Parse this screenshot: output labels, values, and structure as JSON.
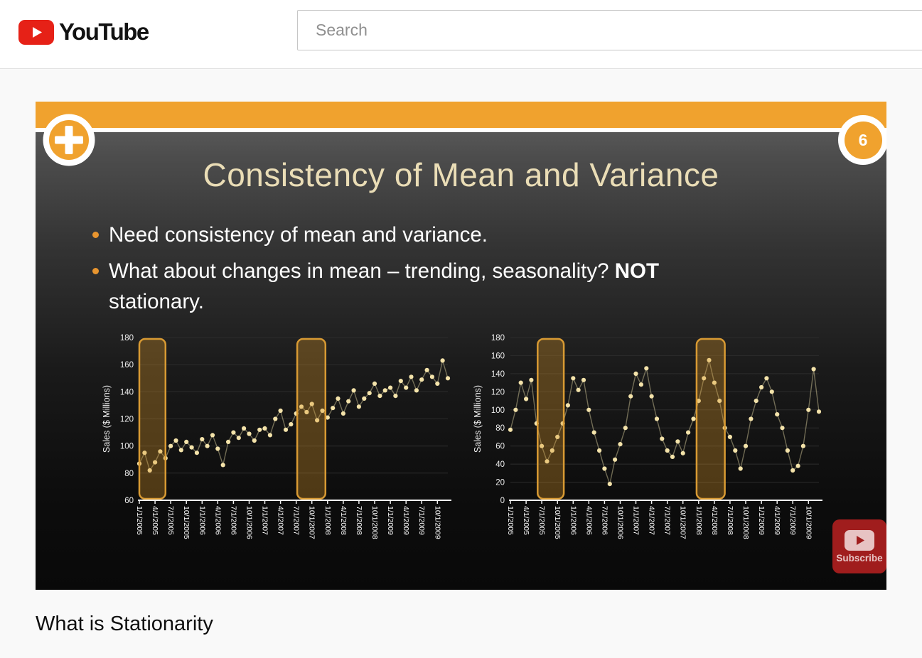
{
  "header": {
    "logo_text": "YouTube",
    "search_placeholder": "Search"
  },
  "slide": {
    "slide_number": "6",
    "title": "Consistency of Mean and Variance",
    "bullets": [
      {
        "text": "Need consistency of mean and variance."
      },
      {
        "pre": "What about changes in mean – trending, seasonality? ",
        "bold": "NOT",
        "post": "stationary."
      }
    ]
  },
  "video": {
    "title": "What is Stationarity"
  },
  "subscribe": {
    "label": "Subscribe"
  },
  "colors": {
    "accent_orange": "#F0A22E",
    "slide_title_cream": "#EADDB6",
    "data_point_cream": "#F4E3AA",
    "highlight_stroke": "#D89A33",
    "subscribe_red": "#A01D1D",
    "youtube_red": "#E62117"
  },
  "chart_data": [
    {
      "type": "scatter",
      "connected_by_line": true,
      "title": "",
      "xlabel": "",
      "ylabel": "Sales ($ Millions)",
      "ylim": [
        60,
        180
      ],
      "yticks": [
        60,
        80,
        100,
        120,
        140,
        160,
        180
      ],
      "x_unit": "months since 1/1/2005",
      "tick_every_months": 3,
      "x_tick_labels": [
        "1/1/2005",
        "4/1/2005",
        "7/1/2005",
        "10/1/2005",
        "1/1/2006",
        "4/1/2006",
        "7/1/2006",
        "10/1/2006",
        "1/1/2007",
        "4/1/2007",
        "7/1/2007",
        "10/1/2007",
        "1/1/2008",
        "4/1/2008",
        "7/1/2008",
        "10/1/2008",
        "1/1/2009",
        "4/1/2009",
        "7/1/2009",
        "10/1/2009"
      ],
      "values": [
        87,
        95,
        82,
        88,
        96,
        91,
        100,
        104,
        97,
        103,
        99,
        95,
        105,
        100,
        108,
        98,
        86,
        103,
        110,
        106,
        113,
        109,
        104,
        112,
        113,
        108,
        120,
        126,
        112,
        116,
        124,
        129,
        125,
        131,
        119,
        126,
        121,
        128,
        135,
        124,
        133,
        141,
        129,
        135,
        139,
        146,
        137,
        141,
        143,
        137,
        148,
        143,
        151,
        141,
        149,
        156,
        151,
        146,
        163,
        150
      ],
      "highlight_boxes_x_months": [
        [
          0,
          5
        ],
        [
          30.2,
          35.6
        ]
      ],
      "pattern": "upward trend (changing mean)"
    },
    {
      "type": "scatter",
      "connected_by_line": true,
      "title": "",
      "xlabel": "",
      "ylabel": "Sales ($ Millions)",
      "ylim": [
        0,
        180
      ],
      "yticks": [
        0,
        20,
        40,
        60,
        80,
        100,
        120,
        140,
        160,
        180
      ],
      "x_unit": "months since 1/1/2005",
      "tick_every_months": 3,
      "x_tick_labels": [
        "1/1/2005",
        "4/1/2005",
        "7/1/2005",
        "10/1/2005",
        "1/1/2006",
        "4/1/2006",
        "7/1/2006",
        "10/1/2006",
        "1/1/2007",
        "4/1/2007",
        "7/1/2007",
        "10/1/2007",
        "1/1/2008",
        "4/1/2008",
        "7/1/2008",
        "10/1/2008",
        "1/1/2009",
        "4/1/2009",
        "7/1/2009",
        "10/1/2009"
      ],
      "values": [
        78,
        100,
        130,
        112,
        133,
        85,
        60,
        43,
        55,
        70,
        85,
        105,
        135,
        122,
        133,
        100,
        75,
        55,
        35,
        18,
        45,
        62,
        80,
        115,
        140,
        128,
        146,
        115,
        90,
        68,
        55,
        48,
        65,
        52,
        75,
        90,
        110,
        135,
        155,
        130,
        110,
        80,
        70,
        55,
        35,
        60,
        90,
        110,
        125,
        135,
        120,
        95,
        80,
        55,
        33,
        38,
        60,
        100,
        145,
        98
      ],
      "highlight_boxes_x_months": [
        [
          5.2,
          10.2
        ],
        [
          35.6,
          41
        ]
      ],
      "pattern": "seasonal oscillation (changing mean)"
    }
  ]
}
